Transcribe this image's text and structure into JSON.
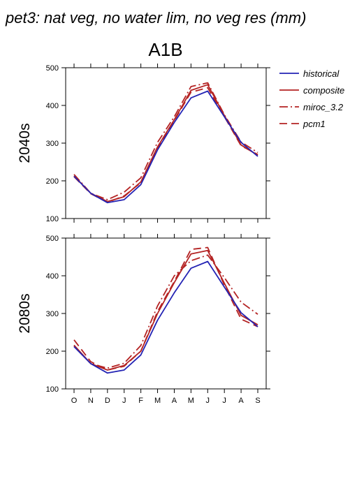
{
  "chart_data": {
    "type": "line",
    "title": "pet3: nat veg, no water lim, no veg res (mm)",
    "subtitle": "A1B",
    "categories": [
      "O",
      "N",
      "D",
      "J",
      "F",
      "M",
      "A",
      "M",
      "J",
      "J",
      "A",
      "S"
    ],
    "ylim": [
      100,
      500
    ],
    "yticks": [
      100,
      200,
      300,
      400,
      500
    ],
    "grid": false,
    "legend": "top-right",
    "legend_entries": [
      "historical",
      "composite",
      "miroc_3.2",
      "pcm1"
    ],
    "colors": {
      "historical": "#2323b4",
      "composite": "#b42323",
      "miroc_3.2": "#b42323",
      "pcm1": "#b42323"
    },
    "panels": [
      {
        "label": "2040s",
        "series": [
          {
            "name": "historical",
            "values": [
              212,
              167,
              142,
              150,
              190,
              282,
              355,
              420,
              438,
              370,
              302,
              265
            ]
          },
          {
            "name": "composite",
            "values": [
              213,
              167,
              145,
              158,
              197,
              290,
              362,
              440,
              455,
              373,
              295,
              268
            ]
          },
          {
            "name": "miroc_3.2",
            "values": [
              217,
              167,
              150,
              170,
              208,
              302,
              370,
              450,
              460,
              375,
              303,
              275
            ]
          },
          {
            "name": "pcm1",
            "values": [
              211,
              166,
              143,
              160,
              195,
              287,
              360,
              435,
              447,
              370,
              293,
              270
            ]
          }
        ]
      },
      {
        "label": "2080s",
        "series": [
          {
            "name": "historical",
            "values": [
              212,
              167,
              142,
              150,
              190,
              282,
              355,
              420,
              438,
              370,
              302,
              265
            ]
          },
          {
            "name": "composite",
            "values": [
              216,
              167,
              150,
              162,
              200,
              300,
              382,
              458,
              467,
              380,
              295,
              270
            ]
          },
          {
            "name": "miroc_3.2",
            "values": [
              214,
              167,
              155,
              168,
              215,
              320,
              400,
              440,
              455,
              395,
              330,
              298
            ]
          },
          {
            "name": "pcm1",
            "values": [
              230,
              172,
              150,
              160,
              200,
              305,
              385,
              470,
              475,
              375,
              285,
              265
            ]
          }
        ]
      }
    ]
  }
}
